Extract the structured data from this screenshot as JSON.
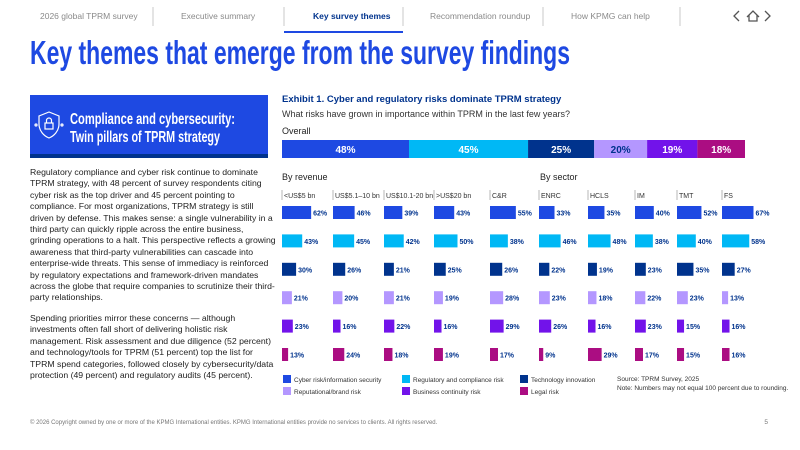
{
  "nav": {
    "items": [
      "2026 global TPRM survey",
      "Executive summary",
      "Key survey themes",
      "Recommendation roundup",
      "How KPMG can help"
    ],
    "active": 2
  },
  "title": "Key themes that emerge from the survey findings",
  "sidebar": {
    "heading": [
      "Compliance and cybersecurity:",
      "Twin pillars of TPRM strategy"
    ],
    "paragraphs": [
      "Regulatory compliance and cyber risk continue to dominate TPRM strategy, with 48 percent of survey respondents citing cyber risk as the top driver and 45 percent pointing to compliance. For most organizations, TPRM strategy is still driven by defense. This makes sense: a single vulnerability in a third party can quickly ripple across the entire business, grinding operations to a halt. This perspective reflects a growing awareness that third-party vulnerabilities can cascade into enterprise-wide threats. This sense of immediacy is reinforced by regulatory expectations and framework-driven mandates across the globe that require companies to scrutinize their third-party relationships.",
      "Spending priorities mirror these concerns — although investments often fall short of delivering holistic risk management. Risk assessment and due diligence (52 percent) and technology/tools for TPRM (51 percent) top the list for TPRM spend categories, followed closely by cybersecurity/data protection (49 percent) and regulatory audits (45 percent)."
    ]
  },
  "exhibit": {
    "title": "Exhibit 1. Cyber and regulatory risks dominate TPRM strategy",
    "question": "What risks have grown in importance within TPRM in the last few years?",
    "source": "Source: TPRM Survey, 2025",
    "note": "Note: Numbers may not equal 100 percent due to rounding."
  },
  "chart_data": [
    {
      "type": "stacked-bar",
      "title": "Overall",
      "series": [
        {
          "name": "Cyber risk/information security",
          "color": "#1e49e2",
          "values": [
            48
          ],
          "value_labels": [
            "48%"
          ]
        },
        {
          "name": "Regulatory and compliance risk",
          "color": "#00b8f5",
          "values": [
            45
          ],
          "value_labels": [
            "45%"
          ]
        },
        {
          "name": "Technology innovation",
          "color": "#00338d",
          "values": [
            25
          ],
          "value_labels": [
            "25%"
          ]
        },
        {
          "name": "Reputational/brand risk",
          "color": "#b497ff",
          "values": [
            20
          ],
          "value_labels": [
            "20%"
          ]
        },
        {
          "name": "Business continuity risk",
          "color": "#7213ea",
          "values": [
            19
          ],
          "value_labels": [
            "19%"
          ]
        },
        {
          "name": "Legal risk",
          "color": "#ab0d82",
          "values": [
            18
          ],
          "value_labels": [
            "18%"
          ]
        }
      ]
    },
    {
      "type": "small-multiple-bar",
      "title": "By revenue",
      "categories": [
        "<US$5 bn",
        "US$5.1–10 bn",
        "US$10.1-20 bn",
        ">US$20 bn",
        "C&R"
      ],
      "series": [
        {
          "color": "#1e49e2",
          "values": [
            62,
            46,
            39,
            43,
            55
          ],
          "value_labels": [
            "62%",
            "46%",
            "39%",
            "43%",
            "55%"
          ]
        },
        {
          "color": "#00b8f5",
          "values": [
            43,
            45,
            42,
            50,
            38
          ],
          "value_labels": [
            "43%",
            "45%",
            "42%",
            "50%",
            "38%"
          ]
        },
        {
          "color": "#00338d",
          "values": [
            30,
            26,
            21,
            25,
            26
          ],
          "value_labels": [
            "30%",
            "26%",
            "21%",
            "25%",
            "26%"
          ]
        },
        {
          "color": "#b497ff",
          "values": [
            21,
            20,
            21,
            19,
            28
          ],
          "value_labels": [
            "21%",
            "20%",
            "21%",
            "19%",
            "28%"
          ]
        },
        {
          "color": "#7213ea",
          "values": [
            23,
            16,
            22,
            16,
            29
          ],
          "value_labels": [
            "23%",
            "16%",
            "22%",
            "16%",
            "29%"
          ]
        },
        {
          "color": "#ab0d82",
          "values": [
            13,
            24,
            18,
            19,
            17
          ],
          "value_labels": [
            "13%",
            "24%",
            "18%",
            "19%",
            "17%"
          ]
        }
      ]
    },
    {
      "type": "small-multiple-bar",
      "title": "By sector",
      "categories": [
        "ENRC",
        "HCLS",
        "IM",
        "TMT",
        "FS"
      ],
      "series": [
        {
          "color": "#1e49e2",
          "values": [
            33,
            35,
            40,
            52,
            67
          ],
          "value_labels": [
            "33%",
            "35%",
            "40%",
            "52%",
            "67%"
          ]
        },
        {
          "color": "#00b8f5",
          "values": [
            46,
            48,
            38,
            40,
            58
          ],
          "value_labels": [
            "46%",
            "48%",
            "38%",
            "40%",
            "58%"
          ]
        },
        {
          "color": "#00338d",
          "values": [
            22,
            19,
            23,
            35,
            27
          ],
          "value_labels": [
            "22%",
            "19%",
            "23%",
            "35%",
            "27%"
          ]
        },
        {
          "color": "#b497ff",
          "values": [
            23,
            18,
            22,
            23,
            13
          ],
          "value_labels": [
            "23%",
            "18%",
            "22%",
            "23%",
            "13%"
          ]
        },
        {
          "color": "#7213ea",
          "values": [
            26,
            16,
            23,
            15,
            16
          ],
          "value_labels": [
            "26%",
            "16%",
            "23%",
            "15%",
            "16%"
          ]
        },
        {
          "color": "#ab0d82",
          "values": [
            9,
            29,
            17,
            15,
            16
          ],
          "value_labels": [
            "9%",
            "29%",
            "17%",
            "15%",
            "16%"
          ]
        }
      ]
    }
  ],
  "footer": {
    "copyright": "© 2026 Copyright owned by one or more of the KPMG International entities. KPMG International entities provide no services to clients. All rights reserved.",
    "page": "5"
  }
}
